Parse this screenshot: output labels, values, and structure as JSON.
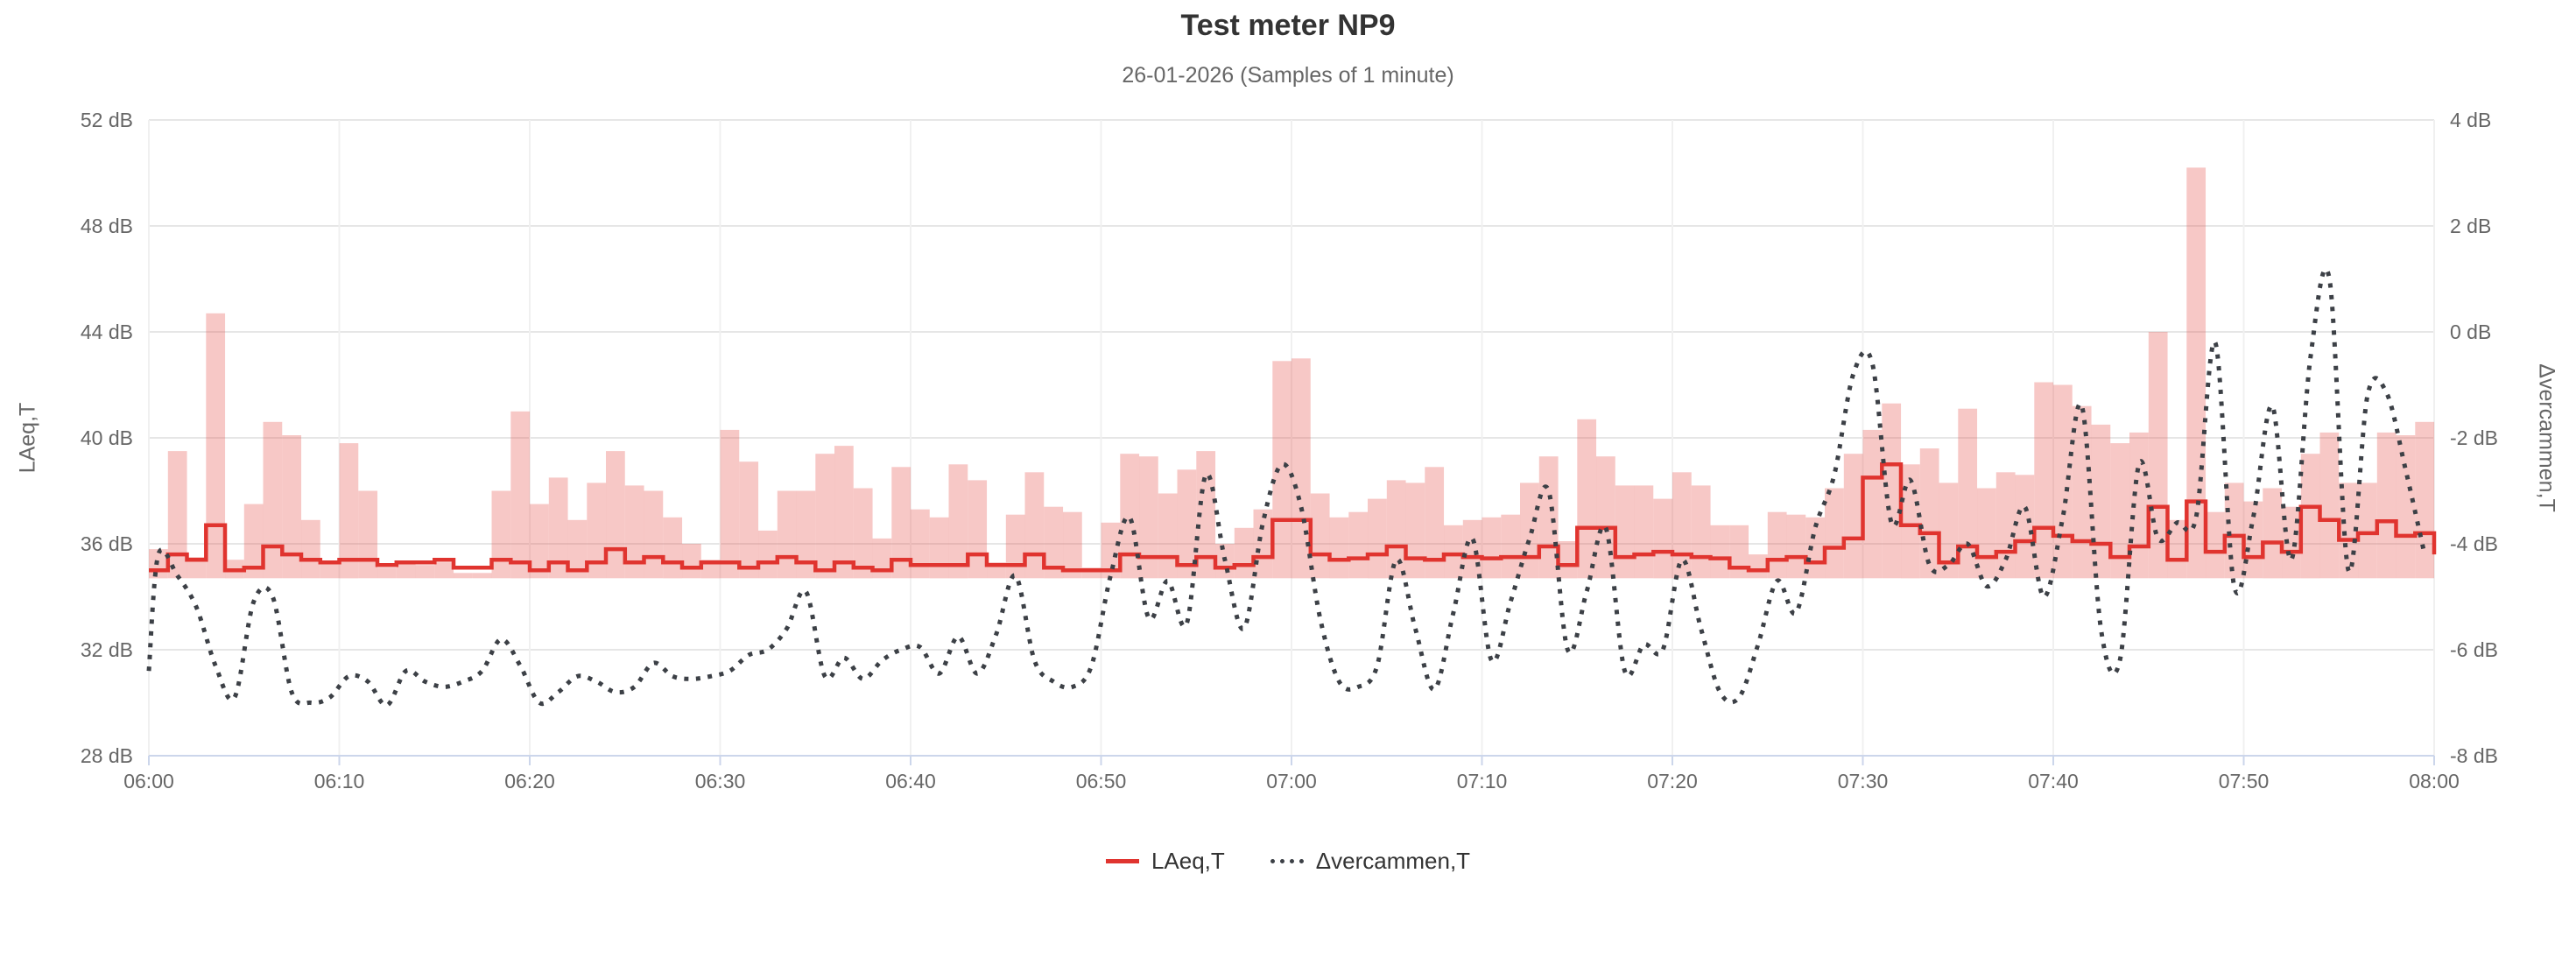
{
  "header": {
    "title": "Test meter NP9",
    "subtitle": "26-01-2026 (Samples of 1 minute)"
  },
  "legend": {
    "items": [
      {
        "label": "LAeq,T",
        "color": "#e0342f",
        "style": "solid"
      },
      {
        "label": "Δvercammen,T",
        "color": "#3c4046",
        "style": "dotted"
      }
    ]
  },
  "chart_data": {
    "type": "combo-column-stepline-dottedspline",
    "title": "Test meter NP9",
    "subtitle": "26-01-2026 (Samples of 1 minute)",
    "x_axis": {
      "tick_labels": [
        "06:00",
        "06:10",
        "06:20",
        "06:30",
        "06:40",
        "06:50",
        "07:00",
        "07:10",
        "07:20",
        "07:30",
        "07:40",
        "07:50",
        "08:00"
      ],
      "minutes_total": 120,
      "grid": true
    },
    "left_axis": {
      "title": "LAeq,T",
      "min": 28,
      "max": 52,
      "tick_step": 4,
      "tick_labels": [
        "52 dB",
        "48 dB",
        "44 dB",
        "40 dB",
        "36 dB",
        "32 dB",
        "28 dB"
      ],
      "grid": true
    },
    "right_axis": {
      "title": "Δvercammen,T",
      "min": -8,
      "max": 4,
      "tick_step": 2,
      "tick_labels": [
        "4 dB",
        "2 dB",
        "0 dB",
        "-2 dB",
        "-4 dB",
        "-6 dB",
        "-8 dB"
      ],
      "grid": false
    },
    "colors": {
      "bar_fill": "rgba(231,84,77,0.32)",
      "laeq_line": "#e0342f",
      "delta_line": "#3c4046",
      "grid_h": "#e6e6e6",
      "grid_v": "#f0f0f0",
      "axis_line": "#ccd6eb",
      "label_text": "#666666",
      "title_text": "#333333"
    },
    "series": [
      {
        "name": "max-band-columns",
        "type": "column",
        "axis": "left",
        "base": 34.7,
        "values": [
          35.8,
          39.5,
          35.5,
          44.7,
          35.4,
          37.5,
          40.6,
          40.1,
          36.9,
          35.3,
          39.8,
          38.0,
          35.1,
          35.3,
          35.2,
          35.3,
          34.9,
          34.9,
          38.0,
          41.0,
          37.5,
          38.5,
          36.9,
          38.3,
          39.5,
          38.2,
          38.0,
          37.0,
          36.0,
          35.4,
          40.3,
          39.1,
          36.5,
          38.0,
          38.0,
          39.4,
          39.7,
          38.1,
          36.2,
          38.9,
          37.3,
          37.0,
          39.0,
          38.4,
          35.3,
          37.1,
          38.7,
          37.4,
          37.2,
          35.1,
          36.8,
          39.4,
          39.3,
          37.9,
          38.8,
          39.5,
          36.0,
          36.6,
          37.3,
          42.9,
          43.0,
          37.9,
          37.0,
          37.2,
          37.7,
          38.4,
          38.3,
          38.9,
          36.7,
          36.9,
          37.0,
          37.1,
          38.3,
          39.3,
          36.1,
          40.7,
          39.3,
          38.2,
          38.2,
          37.7,
          38.7,
          38.2,
          36.7,
          36.7,
          35.6,
          37.2,
          37.1,
          37.0,
          38.1,
          39.4,
          40.3,
          41.3,
          39.0,
          39.6,
          38.3,
          41.1,
          38.1,
          38.7,
          38.6,
          42.1,
          42.0,
          41.2,
          40.5,
          39.8,
          40.2,
          44.0,
          36.9,
          50.2,
          37.2,
          38.3,
          37.6,
          38.1,
          37.4,
          39.4,
          40.2,
          38.3,
          38.3,
          40.2,
          40.1,
          40.6
        ]
      },
      {
        "name": "LAeq,T",
        "type": "step-line",
        "axis": "left",
        "end_value": 35.6,
        "values": [
          35.0,
          35.6,
          35.4,
          36.7,
          35.0,
          35.1,
          35.9,
          35.6,
          35.4,
          35.3,
          35.4,
          35.4,
          35.2,
          35.3,
          35.3,
          35.4,
          35.1,
          35.1,
          35.4,
          35.3,
          35.0,
          35.3,
          35.0,
          35.3,
          35.8,
          35.3,
          35.5,
          35.3,
          35.1,
          35.3,
          35.3,
          35.1,
          35.3,
          35.5,
          35.3,
          35.0,
          35.3,
          35.1,
          35.0,
          35.4,
          35.2,
          35.2,
          35.2,
          35.6,
          35.2,
          35.2,
          35.6,
          35.1,
          35.0,
          35.0,
          35.0,
          35.6,
          35.5,
          35.5,
          35.2,
          35.5,
          35.1,
          35.2,
          35.5,
          36.9,
          36.9,
          35.6,
          35.4,
          35.45,
          35.6,
          35.9,
          35.45,
          35.4,
          35.6,
          35.5,
          35.45,
          35.5,
          35.5,
          35.9,
          35.2,
          36.6,
          36.6,
          35.5,
          35.6,
          35.7,
          35.6,
          35.5,
          35.45,
          35.1,
          35.0,
          35.4,
          35.5,
          35.3,
          35.85,
          36.2,
          38.5,
          39.0,
          36.7,
          36.4,
          35.3,
          35.9,
          35.5,
          35.7,
          36.1,
          36.6,
          36.3,
          36.1,
          36.0,
          35.5,
          35.9,
          37.4,
          35.4,
          37.6,
          35.7,
          36.3,
          35.5,
          36.05,
          35.7,
          37.4,
          36.9,
          36.15,
          36.4,
          36.85,
          36.3,
          36.4
        ]
      },
      {
        "name": "Δvercammen,T",
        "type": "dotted-spline",
        "axis": "right",
        "edge_start": -6.4,
        "values": [
          -4.2,
          -4.6,
          -5.2,
          -6.3,
          -6.9,
          -5.1,
          -5.0,
          -6.8,
          -7.0,
          -6.9,
          -6.5,
          -6.6,
          -7.05,
          -6.4,
          -6.6,
          -6.7,
          -6.6,
          -6.4,
          -5.8,
          -6.3,
          -7.0,
          -6.8,
          -6.5,
          -6.6,
          -6.8,
          -6.7,
          -6.25,
          -6.5,
          -6.55,
          -6.5,
          -6.4,
          -6.1,
          -6.0,
          -5.6,
          -4.9,
          -6.5,
          -6.15,
          -6.55,
          -6.2,
          -6.0,
          -5.95,
          -6.45,
          -5.75,
          -6.45,
          -5.7,
          -4.6,
          -6.2,
          -6.6,
          -6.7,
          -6.3,
          -4.6,
          -3.5,
          -5.4,
          -4.7,
          -5.5,
          -2.7,
          -4.3,
          -5.6,
          -3.6,
          -2.5,
          -3.3,
          -5.4,
          -6.6,
          -6.7,
          -6.3,
          -4.3,
          -5.6,
          -6.75,
          -5.3,
          -3.9,
          -6.2,
          -5.1,
          -3.9,
          -3.0,
          -6.0,
          -4.9,
          -3.7,
          -6.4,
          -5.9,
          -6.0,
          -4.3,
          -5.6,
          -6.8,
          -6.9,
          -5.9,
          -4.7,
          -5.3,
          -3.7,
          -2.7,
          -0.8,
          -0.6,
          -3.6,
          -2.8,
          -4.4,
          -4.4,
          -4.0,
          -4.8,
          -4.3,
          -3.3,
          -5.0,
          -3.5,
          -1.4,
          -5.6,
          -6.2,
          -2.5,
          -3.9,
          -3.6,
          -3.5,
          -0.2,
          -4.8,
          -3.5,
          -1.4,
          -4.3,
          -0.5,
          1.0,
          -4.5,
          -1.2,
          -1.15,
          -2.6,
          -4.2
        ]
      }
    ],
    "layout": {
      "plot_left": 170,
      "plot_right": 2780,
      "plot_top": 137,
      "plot_bottom": 863,
      "x_label_y": 900,
      "tick_len": 11
    }
  }
}
